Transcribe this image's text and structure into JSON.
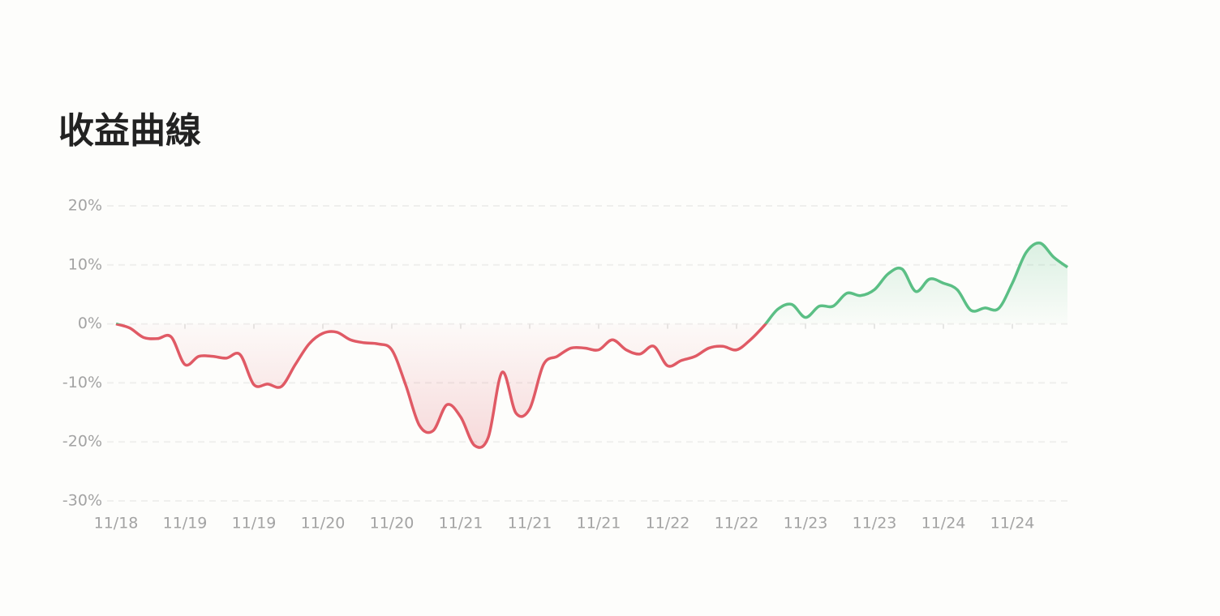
{
  "chart_data": {
    "type": "line",
    "title": "收益曲線",
    "x": [
      0,
      0.2,
      0.4,
      0.6,
      0.8,
      1,
      1.2,
      1.4,
      1.6,
      1.8,
      2,
      2.2,
      2.4,
      2.6,
      2.8,
      3,
      3.2,
      3.4,
      3.6,
      3.8,
      4,
      4.2,
      4.4,
      4.6,
      4.8,
      5,
      5.2,
      5.4,
      5.6,
      5.8,
      6,
      6.2,
      6.4,
      6.6,
      6.8,
      7,
      7.2,
      7.4,
      7.6,
      7.8,
      8,
      8.2,
      8.4,
      8.6,
      8.8,
      9,
      9.2,
      9.4,
      9.6,
      9.8,
      10,
      10.2,
      10.4,
      10.6,
      10.8,
      11,
      11.2,
      11.4,
      11.6,
      11.8,
      12,
      12.2,
      12.4,
      12.6,
      12.8,
      13,
      13.2,
      13.4,
      13.6,
      13.8
    ],
    "values": [
      0,
      -0.7,
      -2.3,
      -2.5,
      -2.2,
      -6.9,
      -5.5,
      -5.5,
      -5.8,
      -5.2,
      -10.3,
      -10.2,
      -10.6,
      -6.9,
      -3.4,
      -1.6,
      -1.4,
      -2.7,
      -3.2,
      -3.4,
      -4.4,
      -10.3,
      -17.2,
      -18.1,
      -13.7,
      -15.8,
      -20.6,
      -19.2,
      -8.2,
      -15.1,
      -14.4,
      -6.9,
      -5.5,
      -4.1,
      -4.1,
      -4.4,
      -2.7,
      -4.4,
      -5.1,
      -3.8,
      -7.1,
      -6.2,
      -5.5,
      -4.1,
      -3.8,
      -4.4,
      -2.7,
      -0.3,
      2.5,
      3.3,
      1.1,
      3.0,
      3.0,
      5.2,
      4.8,
      5.8,
      8.5,
      9.3,
      5.5,
      7.6,
      6.9,
      5.8,
      2.3,
      2.7,
      2.6,
      6.9,
      12.1,
      13.7,
      11.3,
      9.6
    ],
    "positive_color": "#5bbf85",
    "negative_color": "#e05a65",
    "xlim": [
      0,
      13.8
    ],
    "xticks": [
      {
        "value": 0,
        "label": "11/18"
      },
      {
        "value": 1,
        "label": "11/19"
      },
      {
        "value": 2,
        "label": "11/19"
      },
      {
        "value": 3,
        "label": "11/20"
      },
      {
        "value": 4,
        "label": "11/20"
      },
      {
        "value": 5,
        "label": "11/21"
      },
      {
        "value": 6,
        "label": "11/21"
      },
      {
        "value": 7,
        "label": "11/21"
      },
      {
        "value": 8,
        "label": "11/22"
      },
      {
        "value": 9,
        "label": "11/22"
      },
      {
        "value": 10,
        "label": "11/23"
      },
      {
        "value": 11,
        "label": "11/23"
      },
      {
        "value": 12,
        "label": "11/24"
      },
      {
        "value": 13,
        "label": "11/24"
      }
    ],
    "ylim": [
      -30,
      20
    ],
    "yticks": [
      {
        "value": 20,
        "label": "20%"
      },
      {
        "value": 10,
        "label": "10%"
      },
      {
        "value": 0,
        "label": "0%"
      },
      {
        "value": -10,
        "label": "-10%"
      },
      {
        "value": -20,
        "label": "-20%"
      },
      {
        "value": -30,
        "label": "-30%"
      }
    ],
    "grid": true
  }
}
